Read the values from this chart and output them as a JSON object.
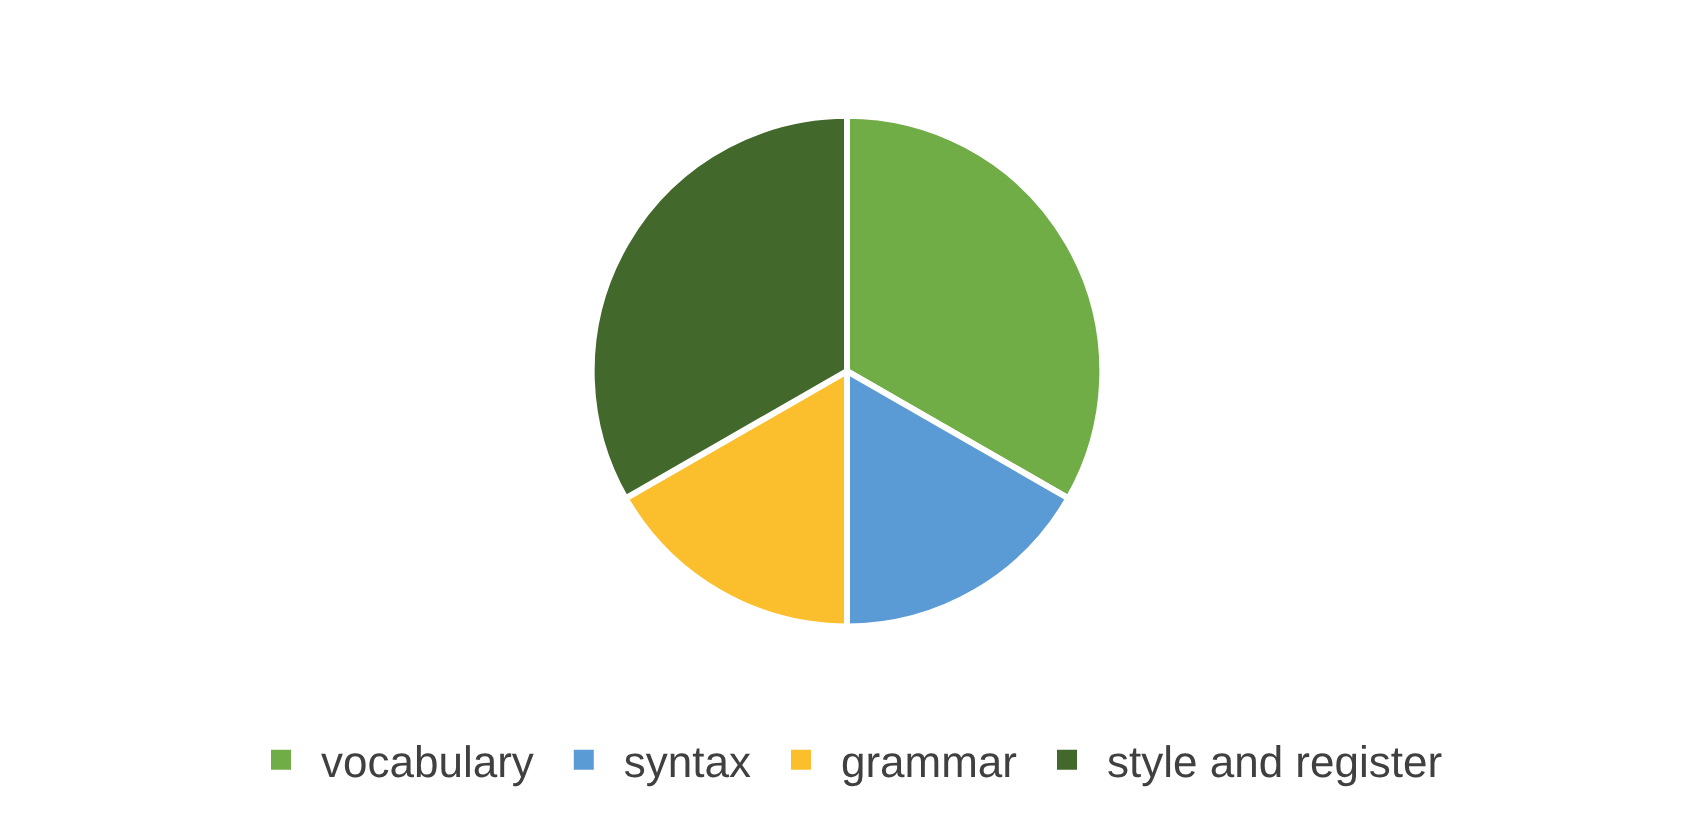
{
  "chart_data": {
    "type": "pie",
    "categories": [
      "vocabulary",
      "syntax",
      "grammar",
      "style and register"
    ],
    "values": [
      33.3,
      16.7,
      16.7,
      33.3
    ],
    "colors": [
      "#70ad47",
      "#5b9bd5",
      "#fbbf2d",
      "#43682b"
    ],
    "legend": "bottom"
  }
}
